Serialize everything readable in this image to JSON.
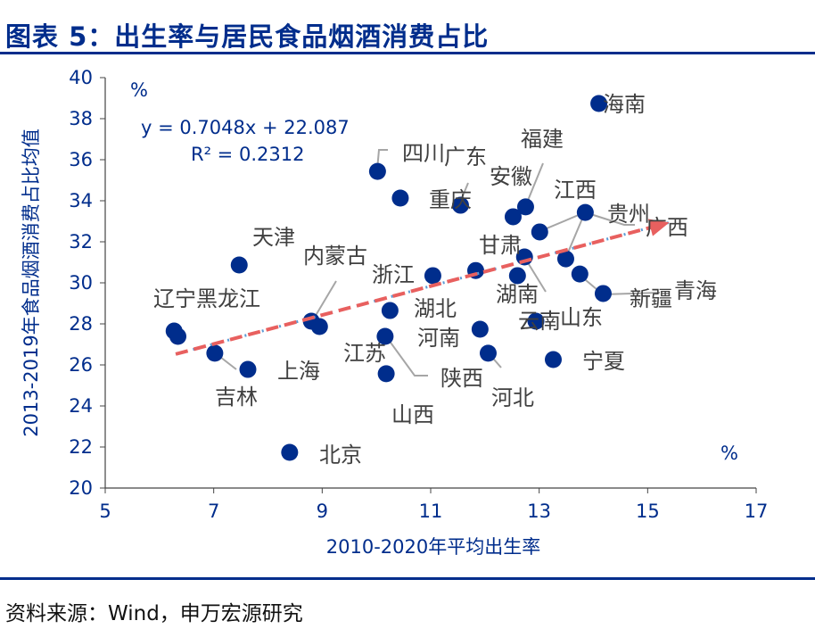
{
  "title": "图表 5：出生率与居民食品烟酒消费占比",
  "source": "资料来源：Wind，申万宏源研究",
  "chart_data": {
    "type": "scatter",
    "xlabel": "2010-2020年平均出生率",
    "ylabel": "2013-2019年食品烟酒消费占比均值",
    "x_unit": "%",
    "y_unit": "%",
    "xlim": [
      5,
      17
    ],
    "ylim": [
      20,
      40
    ],
    "xticks": [
      5,
      7,
      9,
      11,
      13,
      15,
      17
    ],
    "yticks": [
      20,
      22,
      24,
      26,
      28,
      30,
      32,
      34,
      36,
      38,
      40
    ],
    "grid": false,
    "point_color": "#002D8C",
    "trend_color": "#E8605F",
    "trendline": {
      "equation": "y = 0.7048x + 22.087",
      "r2": "R² = 0.2312",
      "slope": 0.7048,
      "intercept": 22.087
    },
    "arrow": {
      "from_x": 6.3,
      "to_x": 15.4
    },
    "points": [
      [
        14.1,
        38.74
      ],
      [
        10.02,
        35.43
      ],
      [
        10.44,
        34.13
      ],
      [
        11.55,
        33.78
      ],
      [
        12.52,
        33.22
      ],
      [
        12.75,
        33.7
      ],
      [
        13.85,
        33.43
      ],
      [
        13.01,
        32.48
      ],
      [
        7.47,
        30.87
      ],
      [
        11.04,
        30.35
      ],
      [
        11.83,
        30.6
      ],
      [
        12.6,
        30.35
      ],
      [
        12.73,
        31.26
      ],
      [
        13.49,
        31.17
      ],
      [
        13.75,
        30.43
      ],
      [
        14.18,
        29.48
      ],
      [
        8.8,
        28.13
      ],
      [
        8.95,
        27.87
      ],
      [
        10.25,
        28.65
      ],
      [
        6.27,
        27.65
      ],
      [
        6.34,
        27.39
      ],
      [
        10.16,
        27.39
      ],
      [
        11.91,
        27.74
      ],
      [
        12.94,
        28.13
      ],
      [
        13.26,
        26.26
      ],
      [
        7.02,
        26.57
      ],
      [
        7.63,
        25.78
      ],
      [
        12.06,
        26.57
      ],
      [
        10.18,
        25.57
      ],
      [
        8.4,
        21.74
      ]
    ],
    "labels": [
      "海南",
      "四川",
      "广东",
      "安徽",
      "福建",
      "重庆",
      "江西",
      "贵州",
      "广西",
      "天津",
      "内蒙古",
      "浙江",
      "甘肃",
      "湖南",
      "辽宁黑龙江",
      "湖北",
      "河南",
      "云南",
      "山东",
      "新疆",
      "青海",
      "江苏",
      "上海",
      "吉林",
      "陕西",
      "山西",
      "河北",
      "宁夏",
      "北京"
    ]
  }
}
